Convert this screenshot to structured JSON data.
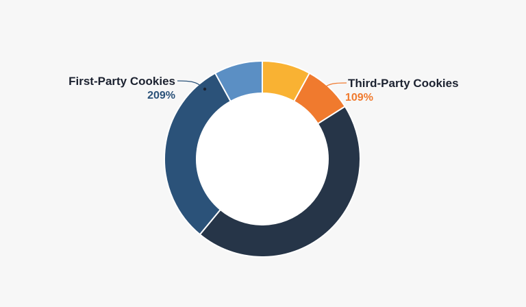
{
  "chart_data": {
    "type": "pie",
    "title": "",
    "slices": [
      {
        "value": 8,
        "color": "#f9b233"
      },
      {
        "value": 8,
        "color": "#f07a2e"
      },
      {
        "value": 45,
        "color": "#263548"
      },
      {
        "value": 31,
        "color": "#2b5279"
      },
      {
        "value": 8,
        "color": "#5b8fc4"
      }
    ],
    "annotations": [
      {
        "name": "First-Party Cookies",
        "value": "209%",
        "color": "#2b5279"
      },
      {
        "name": "Third-Party Cookies",
        "value": "109%",
        "color": "#f07a2e"
      }
    ],
    "label_color": "#1c2230",
    "legend": "none"
  }
}
